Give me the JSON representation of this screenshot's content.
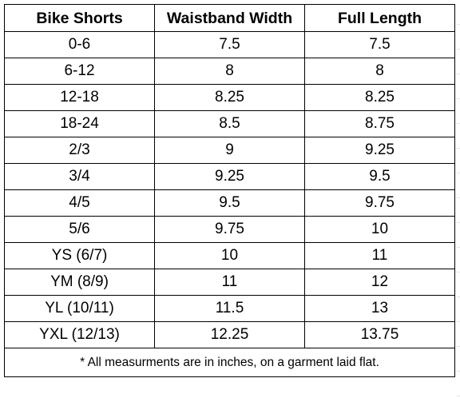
{
  "table": {
    "headers": [
      "Bike Shorts",
      "Waistband Width",
      "Full Length"
    ],
    "rows": [
      [
        "0-6",
        "7.5",
        "7.5"
      ],
      [
        "6-12",
        "8",
        "8"
      ],
      [
        "12-18",
        "8.25",
        "8.25"
      ],
      [
        "18-24",
        "8.5",
        "8.75"
      ],
      [
        "2/3",
        "9",
        "9.25"
      ],
      [
        "3/4",
        "9.25",
        "9.5"
      ],
      [
        "4/5",
        "9.5",
        "9.75"
      ],
      [
        "5/6",
        "9.75",
        "10"
      ],
      [
        "YS (6/7)",
        "10",
        "11"
      ],
      [
        "YM (8/9)",
        "11",
        "12"
      ],
      [
        "YL (10/11)",
        "11.5",
        "13"
      ],
      [
        "YXL (12/13)",
        "12.25",
        "13.75"
      ]
    ],
    "footnote": "* All measurments are in inches, on a garment laid flat."
  }
}
